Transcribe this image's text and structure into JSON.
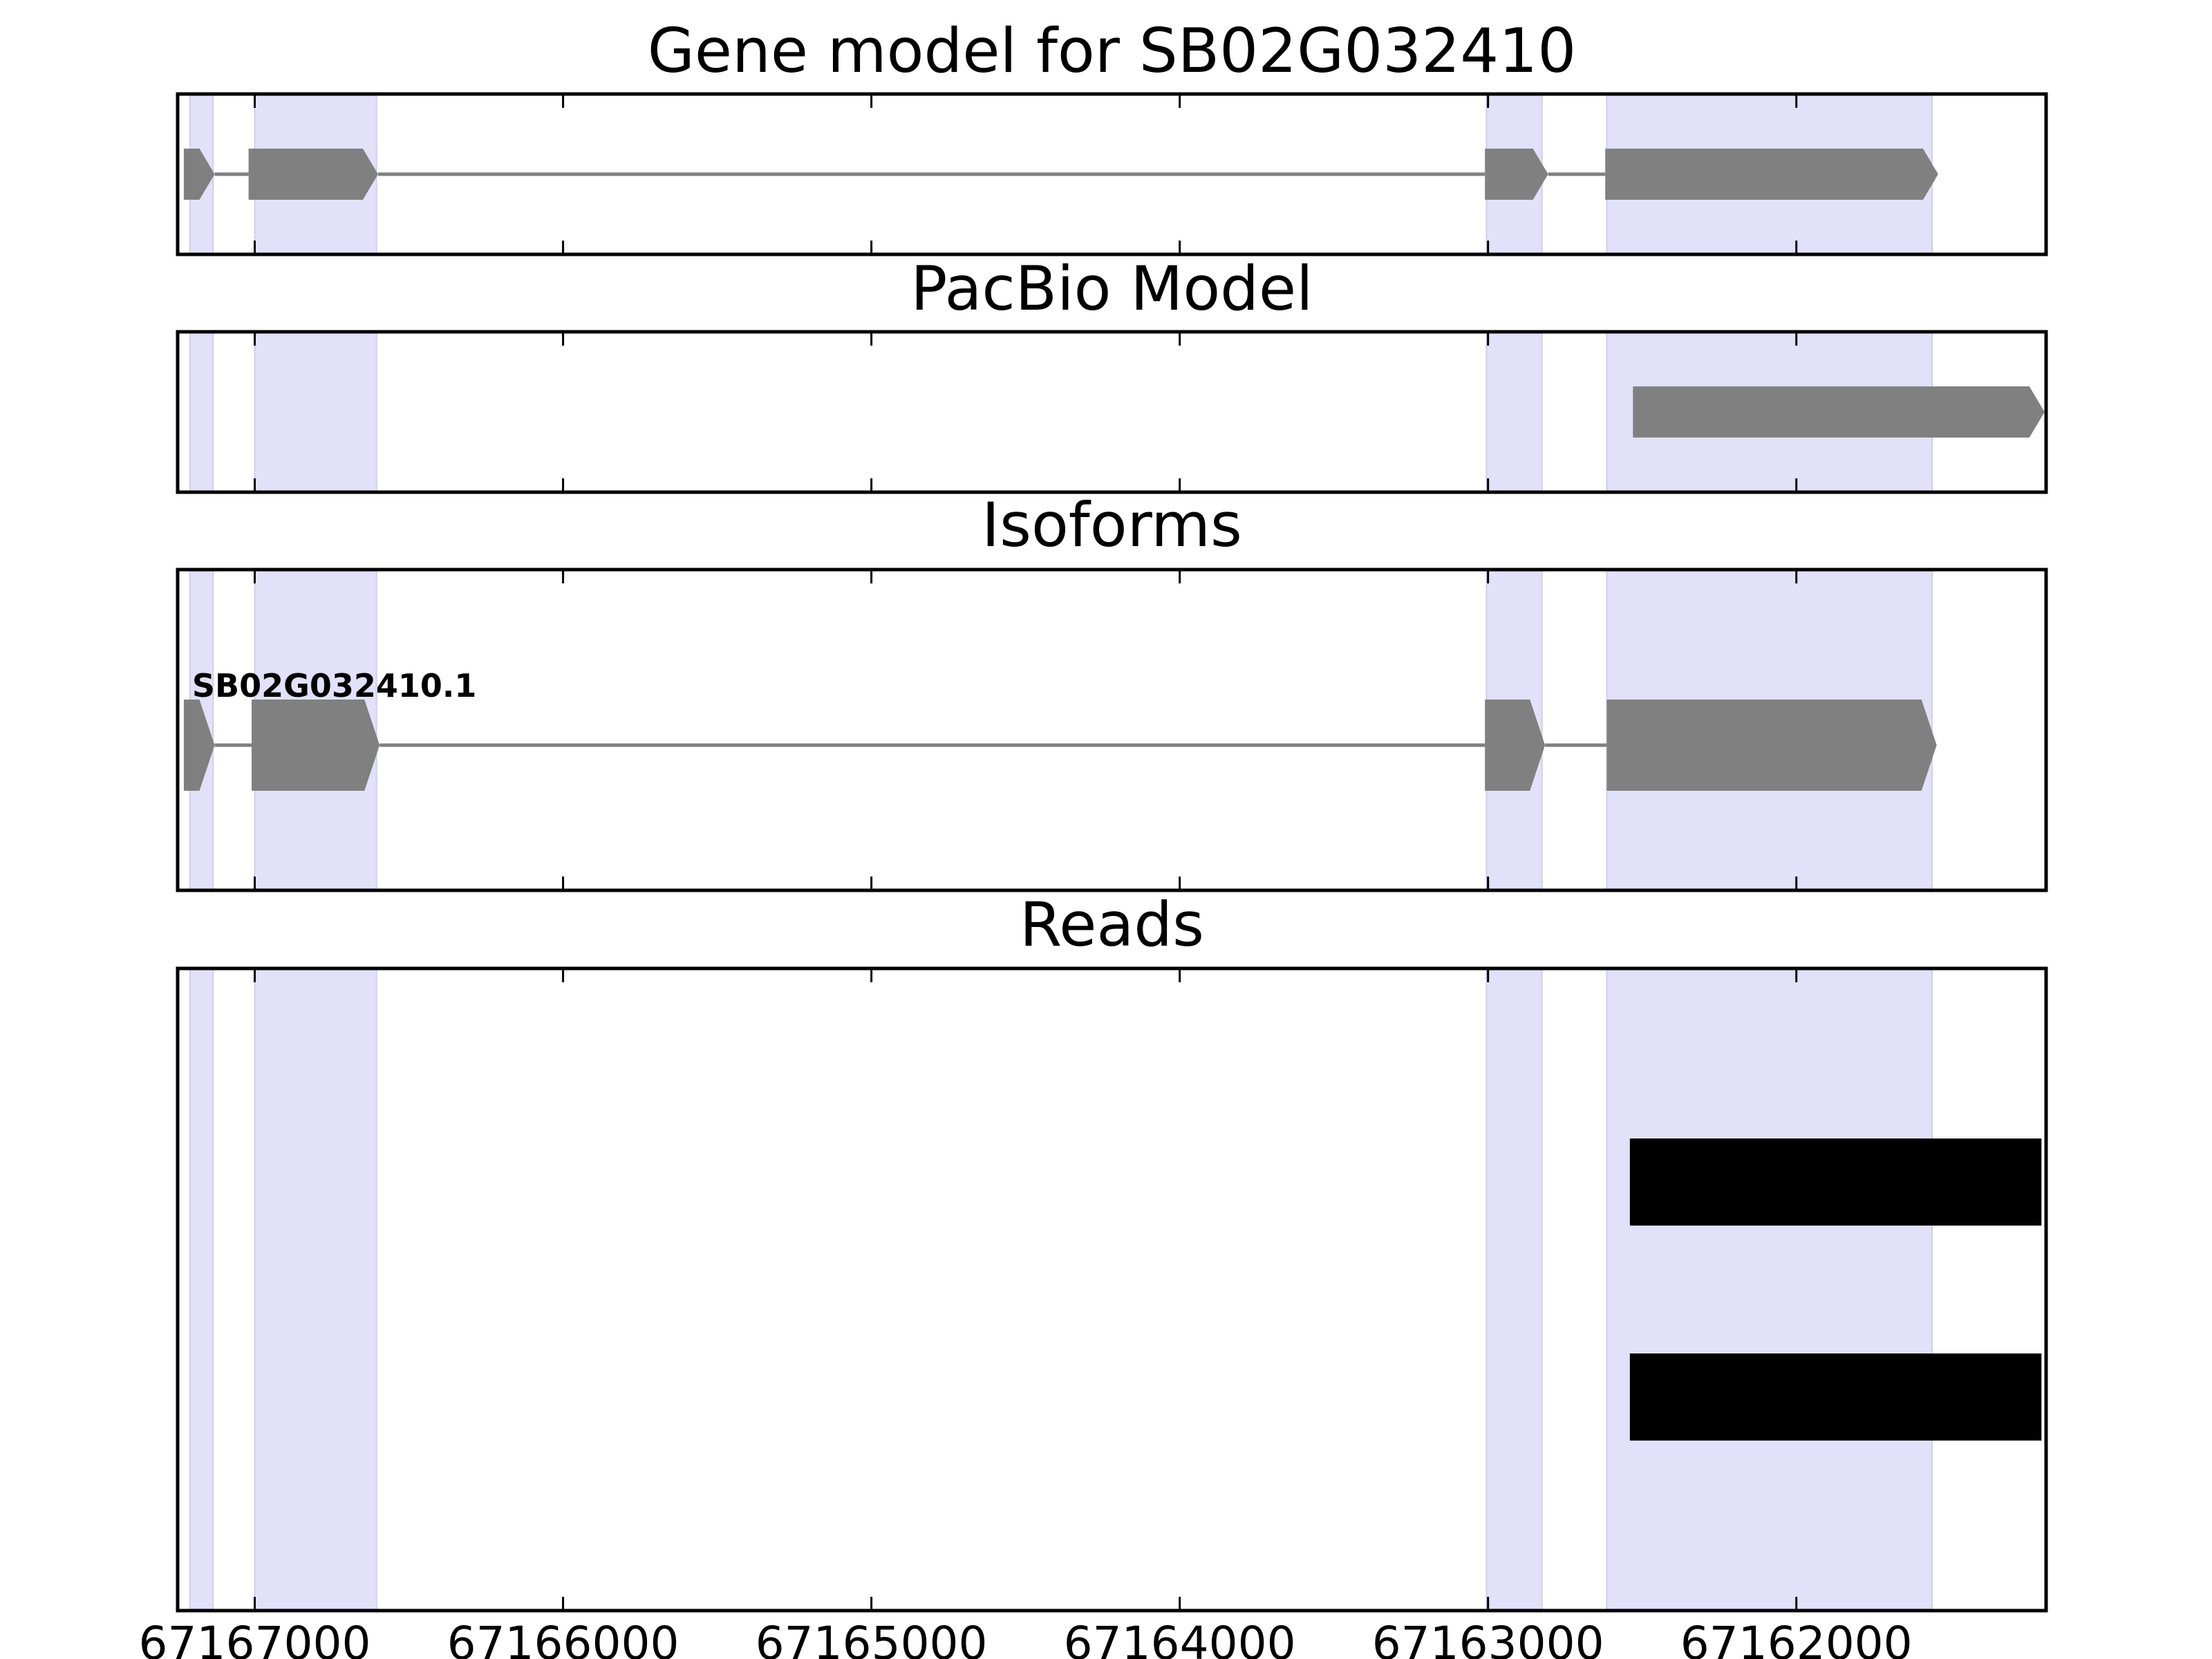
{
  "chart_data": {
    "type": "gene_model_tracks",
    "x_axis": {
      "reversed": true,
      "range": [
        67167250,
        67161190
      ],
      "ticks": [
        67167000,
        67166000,
        67165000,
        67164000,
        67163000,
        67162000
      ],
      "tick_labels": [
        "67167000",
        "67166000",
        "67165000",
        "67164000",
        "67163000",
        "67162000"
      ]
    },
    "exon_shading": {
      "color": "#e1e1fa",
      "regions": [
        [
          67167210,
          67167135
        ],
        [
          67167000,
          67166605
        ],
        [
          67163005,
          67162825
        ],
        [
          67162615,
          67161560
        ]
      ]
    },
    "panels": [
      {
        "title": "Gene model for SB02G032410",
        "features": [
          {
            "kind": "gene",
            "strand": "-",
            "exons": [
              [
                67167230,
                67167130
              ],
              [
                67167020,
                67166600
              ],
              [
                67163010,
                67162805
              ],
              [
                67162620,
                67161540
              ]
            ]
          }
        ]
      },
      {
        "title": "PacBio Model",
        "features": [
          {
            "kind": "model",
            "strand": "-",
            "exons": [
              [
                67162530,
                67161195
              ]
            ]
          }
        ]
      },
      {
        "title": "Isoforms",
        "features": [
          {
            "kind": "isoform",
            "label": "SB02G032410.1",
            "strand": "-",
            "exons": [
              [
                67167230,
                67167130
              ],
              [
                67167010,
                67166595
              ],
              [
                67163010,
                67162815
              ],
              [
                67162615,
                67161545
              ]
            ]
          }
        ]
      },
      {
        "title": "Reads",
        "features": [
          {
            "kind": "read",
            "start": 67162540,
            "end": 67161205
          },
          {
            "kind": "read",
            "start": 67162540,
            "end": 67161205
          }
        ]
      }
    ],
    "colors": {
      "feature": "#808080",
      "intron": "#808080",
      "read": "#000000",
      "axes": "#000000"
    }
  }
}
